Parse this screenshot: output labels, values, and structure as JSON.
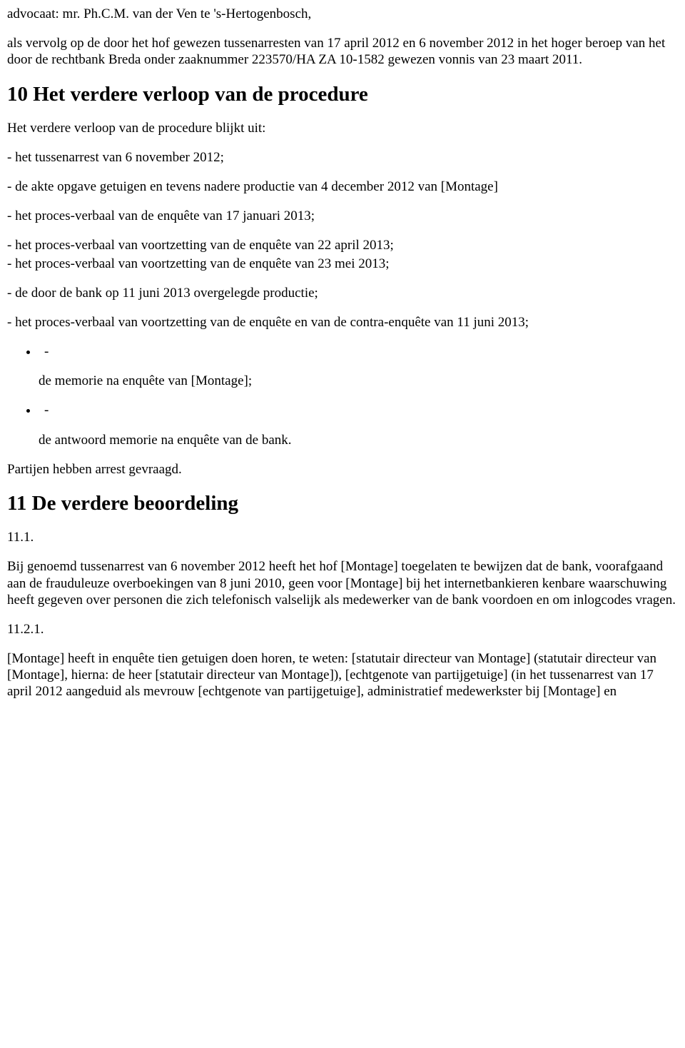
{
  "intro": {
    "p1": "advocaat: mr. Ph.C.M. van der Ven te 's-Hertogenbosch,",
    "p2": "als vervolg op de door het hof gewezen tussenarresten van 17 april 2012 en 6 november 2012 in het hoger beroep van het door de rechtbank Breda onder zaaknummer 223570/HA ZA 10-1582 gewezen vonnis van 23 maart 2011."
  },
  "section10": {
    "heading": "10 Het verdere verloop van de procedure",
    "lead": "Het verdere verloop van de procedure blijkt uit:",
    "items": [
      "- het tussenarrest van 6 november 2012;",
      "- de akte opgave getuigen en tevens nadere productie van 4 december 2012 van [Montage]",
      "- het proces-verbaal van de enquête van 17 januari 2013;"
    ],
    "pair1a": "- het proces-verbaal van voortzetting van de enquête van 22 april 2013;",
    "pair1b": "- het proces-verbaal van voortzetting van de enquête van 23 mei 2013;",
    "item5": "- de door de bank op 11 juni 2013 overgelegde productie;",
    "item6": "- het proces-verbaal van voortzetting van de enquête en van de contra-enquête van 11 juni 2013;",
    "bullet1_marker": "-",
    "bullet1_text": "de memorie na enquête van [Montage];",
    "bullet2_marker": "-",
    "bullet2_text": "de antwoord memorie na enquête van de bank.",
    "closing": "Partijen hebben arrest gevraagd."
  },
  "section11": {
    "heading": "11 De verdere beoordeling",
    "s11_1_num": "11.1.",
    "s11_1_body": "Bij genoemd tussenarrest van 6 november 2012 heeft het hof [Montage] toegelaten te bewijzen dat de bank, voorafgaand aan de frauduleuze overboekingen van 8 juni 2010, geen voor [Montage] bij het internetbankieren kenbare waarschuwing heeft gegeven over personen die zich telefonisch valselijk als medewerker van de bank voordoen en om inlogcodes vragen.",
    "s11_2_1_num": "11.2.1.",
    "s11_2_1_body": "[Montage] heeft in enquête tien getuigen doen horen, te weten: [statutair directeur van Montage] (statutair directeur van [Montage], hierna: de heer [statutair directeur van Montage]), [echtgenote van partijgetuige] (in het tussenarrest van 17 april 2012 aangeduid als mevrouw [echtgenote van partijgetuige], administratief medewerkster bij [Montage] en"
  }
}
